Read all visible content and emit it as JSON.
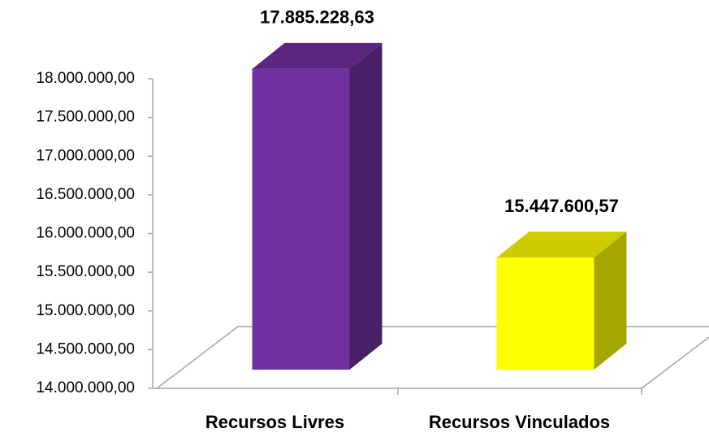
{
  "chart_data": {
    "type": "bar3d",
    "categories": [
      "Recursos Livres",
      "Recursos Vinculados"
    ],
    "values": [
      17885228.63,
      15447600.57
    ],
    "value_labels": [
      "17.885.228,63",
      "15.447.600,57"
    ],
    "colors": [
      "#7030a0",
      "#ffff00"
    ],
    "ylim": [
      14000000,
      18000000
    ],
    "yticks": [
      {
        "value": 14000000,
        "label": "14.000.000,00"
      },
      {
        "value": 14500000,
        "label": "14.500.000,00"
      },
      {
        "value": 15000000,
        "label": "15.000.000,00"
      },
      {
        "value": 15500000,
        "label": "15.500.000,00"
      },
      {
        "value": 16000000,
        "label": "16.000.000,00"
      },
      {
        "value": 16500000,
        "label": "16.500.000,00"
      },
      {
        "value": 17000000,
        "label": "17.000.000,00"
      },
      {
        "value": 17500000,
        "label": "17.500.000,00"
      },
      {
        "value": 18000000,
        "label": "18.000.000,00"
      }
    ]
  }
}
